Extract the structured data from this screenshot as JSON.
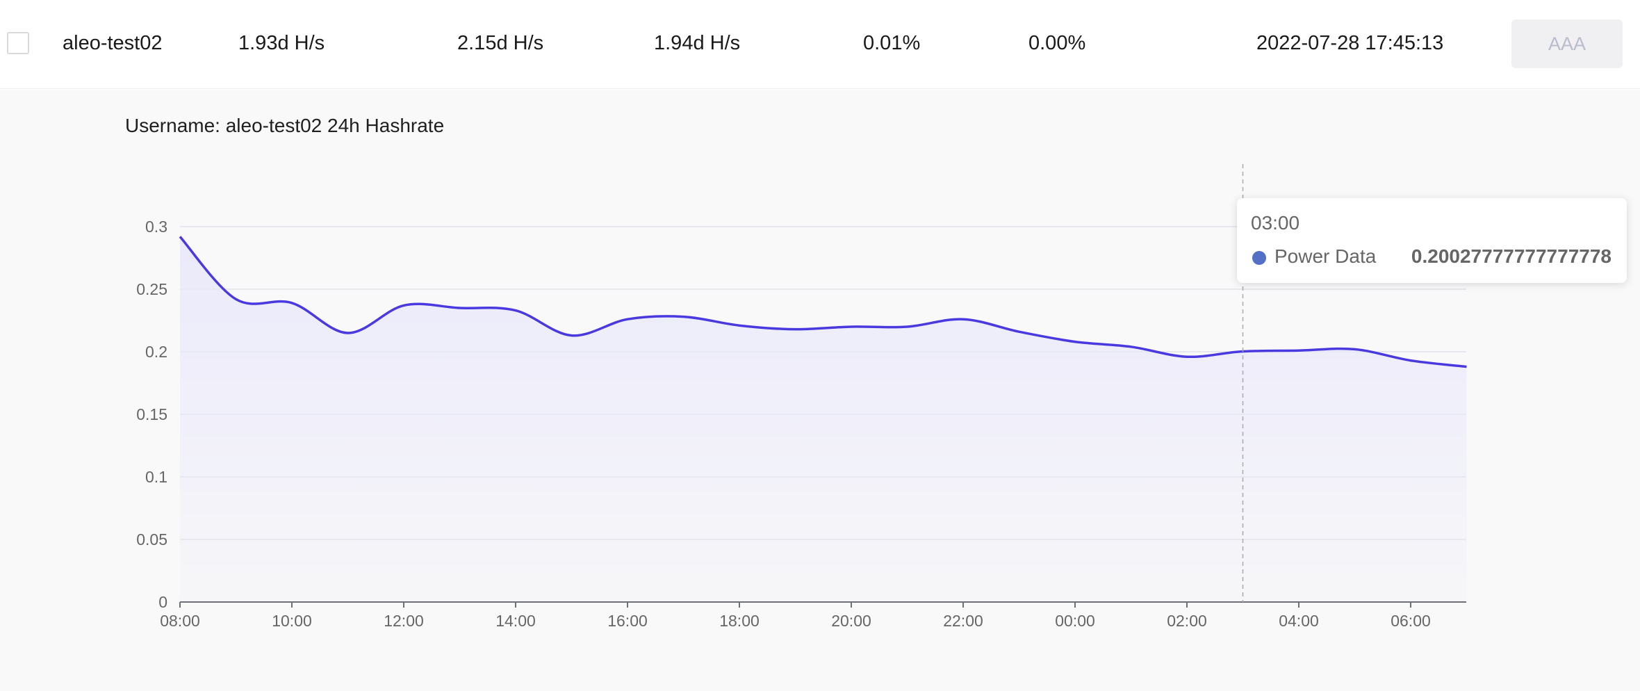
{
  "row": {
    "username": "aleo-test02",
    "hashrate_1": "1.93d H/s",
    "hashrate_2": "2.15d H/s",
    "hashrate_3": "1.94d H/s",
    "percent_1": "0.01%",
    "percent_2": "0.00%",
    "timestamp": "2022-07-28 17:45:13",
    "action_label": "AAA"
  },
  "colors": {
    "line": "#4b39e0",
    "area": "#e9e8fa",
    "tooltip_dot": "#5470c6",
    "button_bg": "#f0f0f2"
  },
  "chart_data": {
    "type": "area",
    "title": "Username: aleo-test02 24h Hashrate",
    "series_name": "Power Data",
    "x": [
      "08:00",
      "09:00",
      "10:00",
      "11:00",
      "12:00",
      "13:00",
      "14:00",
      "15:00",
      "16:00",
      "17:00",
      "18:00",
      "19:00",
      "20:00",
      "21:00",
      "22:00",
      "23:00",
      "00:00",
      "01:00",
      "02:00",
      "03:00",
      "04:00",
      "05:00",
      "06:00",
      "07:00"
    ],
    "x_tick_labels": [
      "08:00",
      "10:00",
      "12:00",
      "14:00",
      "16:00",
      "18:00",
      "20:00",
      "22:00",
      "00:00",
      "02:00",
      "04:00",
      "06:00"
    ],
    "values": [
      0.292,
      0.242,
      0.239,
      0.215,
      0.237,
      0.235,
      0.233,
      0.213,
      0.226,
      0.228,
      0.221,
      0.218,
      0.22,
      0.22,
      0.226,
      0.216,
      0.208,
      0.204,
      0.196,
      0.20027777777777778,
      0.201,
      0.202,
      0.193,
      0.188
    ],
    "ylim": [
      0,
      0.3
    ],
    "y_ticks": [
      "0",
      "0.05",
      "0.1",
      "0.15",
      "0.2",
      "0.25",
      "0.3"
    ],
    "grid": true,
    "tooltip": {
      "label": "03:00",
      "series": "Power Data",
      "value": "0.20027777777777778"
    }
  }
}
